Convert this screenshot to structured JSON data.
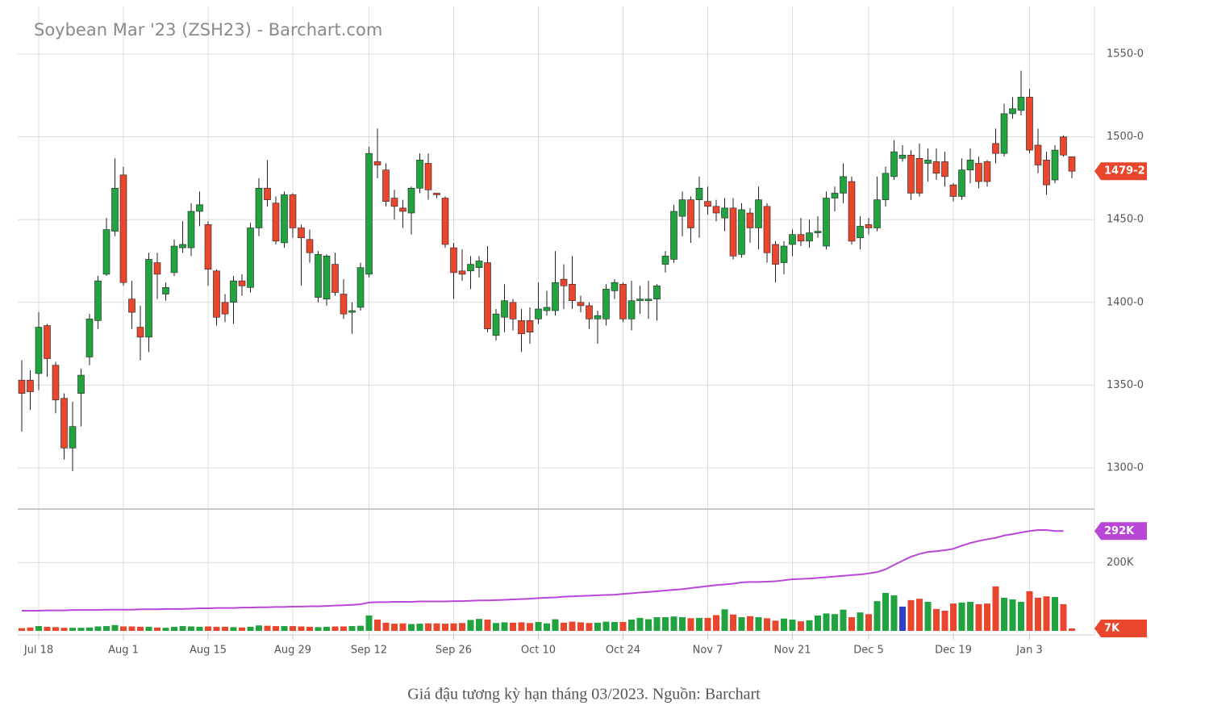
{
  "chart_data": {
    "type": "candlestick",
    "title": "Soybean Mar '23 (ZSH23) - Barchart.com",
    "caption": "Giá đậu tương kỳ hạn tháng 03/2023. Nguồn: Barchart",
    "categories": [
      null,
      null,
      "Jul 18",
      null,
      null,
      null,
      null,
      null,
      null,
      null,
      null,
      null,
      "Aug 1",
      null,
      null,
      null,
      null,
      null,
      null,
      null,
      null,
      null,
      "Aug 15",
      null,
      null,
      null,
      null,
      null,
      null,
      null,
      null,
      null,
      "Aug 29",
      null,
      null,
      null,
      null,
      null,
      null,
      null,
      null,
      "Sep 12",
      null,
      null,
      null,
      null,
      null,
      null,
      null,
      null,
      null,
      "Sep 26",
      null,
      null,
      null,
      null,
      null,
      null,
      null,
      null,
      null,
      "Oct 10",
      null,
      null,
      null,
      null,
      null,
      null,
      null,
      null,
      null,
      "Oct 24",
      null,
      null,
      null,
      null,
      null,
      null,
      null,
      null,
      null,
      "Nov 7",
      null,
      null,
      null,
      null,
      null,
      null,
      null,
      null,
      null,
      "Nov 21",
      null,
      null,
      null,
      null,
      null,
      null,
      null,
      null,
      "Dec 5",
      null,
      null,
      null,
      null,
      null,
      null,
      null,
      null,
      null,
      "Dec 19",
      null,
      null,
      null,
      null,
      null,
      null,
      null,
      null,
      "Jan 3",
      null,
      null,
      null,
      null,
      null
    ],
    "candles": {
      "up_color": "#21a33f",
      "down_color": "#e8472d",
      "open": [
        1353,
        1353,
        1357,
        1386,
        1362,
        1342,
        1312,
        1345,
        1367,
        1389,
        1417,
        1443,
        1477,
        1402,
        1385,
        1379,
        1424,
        1405,
        1418,
        1433,
        1433,
        1455,
        1447,
        1419,
        1400,
        1400,
        1413,
        1409,
        1445,
        1469,
        1460,
        1436,
        1465,
        1445,
        1438,
        1403,
        1402,
        1423,
        1405,
        1394,
        1397,
        1417,
        1485,
        1480,
        1463,
        1457,
        1454,
        1469,
        1484,
        1466,
        1463,
        1433,
        1419,
        1419,
        1421,
        1424,
        1380,
        1391,
        1400,
        1389,
        1389,
        1390,
        1395,
        1395,
        1414,
        1411,
        1400,
        1398,
        1390,
        1390,
        1407,
        1411,
        1390,
        1401,
        1401,
        1402,
        1423,
        1426,
        1452,
        1462,
        1462,
        1461,
        1458,
        1451,
        1457,
        1429,
        1454,
        1445,
        1458,
        1435,
        1424,
        1435,
        1441,
        1437,
        1442,
        1434,
        1463,
        1466,
        1473,
        1439,
        1447,
        1445,
        1462,
        1476,
        1487,
        1489,
        1487,
        1484,
        1485,
        1485,
        1471,
        1464,
        1480,
        1484,
        1485,
        1496,
        1490,
        1514,
        1516,
        1524,
        1495,
        1486,
        1474,
        1500,
        1488
      ],
      "high": [
        1365,
        1359,
        1394,
        1387,
        1364,
        1345,
        1340,
        1360,
        1393,
        1416,
        1451,
        1487,
        1482,
        1413,
        1398,
        1430,
        1430,
        1412,
        1438,
        1449,
        1460,
        1467,
        1449,
        1420,
        1405,
        1416,
        1417,
        1448,
        1475,
        1486,
        1464,
        1467,
        1466,
        1447,
        1444,
        1431,
        1429,
        1430,
        1414,
        1400,
        1424,
        1494,
        1505,
        1484,
        1468,
        1462,
        1470,
        1490,
        1490,
        1466,
        1464,
        1436,
        1432,
        1428,
        1428,
        1434,
        1396,
        1411,
        1402,
        1396,
        1397,
        1412,
        1407,
        1431,
        1423,
        1428,
        1404,
        1400,
        1395,
        1411,
        1414,
        1412,
        1413,
        1410,
        1413,
        1411,
        1431,
        1459,
        1467,
        1464,
        1476,
        1470,
        1462,
        1463,
        1463,
        1460,
        1457,
        1470,
        1460,
        1437,
        1437,
        1444,
        1451,
        1450,
        1452,
        1467,
        1470,
        1484,
        1476,
        1452,
        1451,
        1476,
        1482,
        1498,
        1495,
        1492,
        1496,
        1493,
        1493,
        1491,
        1472,
        1487,
        1493,
        1488,
        1486,
        1505,
        1520,
        1524,
        1540,
        1529,
        1505,
        1491,
        1495,
        1501,
        1488
      ],
      "low": [
        1322,
        1335,
        1347,
        1355,
        1333,
        1305,
        1298,
        1325,
        1362,
        1384,
        1416,
        1440,
        1410,
        1384,
        1365,
        1370,
        1402,
        1401,
        1416,
        1430,
        1428,
        1446,
        1410,
        1386,
        1388,
        1387,
        1404,
        1406,
        1440,
        1458,
        1435,
        1433,
        1439,
        1410,
        1424,
        1400,
        1398,
        1404,
        1390,
        1381,
        1395,
        1415,
        1475,
        1458,
        1450,
        1445,
        1441,
        1466,
        1462,
        1463,
        1433,
        1402,
        1413,
        1408,
        1415,
        1382,
        1377,
        1382,
        1383,
        1370,
        1375,
        1387,
        1392,
        1392,
        1396,
        1396,
        1394,
        1384,
        1375,
        1386,
        1402,
        1388,
        1383,
        1393,
        1390,
        1389,
        1418,
        1424,
        1440,
        1436,
        1439,
        1453,
        1449,
        1443,
        1426,
        1427,
        1436,
        1432,
        1424,
        1412,
        1417,
        1428,
        1434,
        1433,
        1439,
        1432,
        1455,
        1460,
        1435,
        1432,
        1441,
        1443,
        1458,
        1474,
        1485,
        1462,
        1464,
        1473,
        1474,
        1470,
        1461,
        1462,
        1472,
        1469,
        1470,
        1484,
        1488,
        1511,
        1513,
        1490,
        1478,
        1465,
        1472,
        1488,
        1475
      ],
      "close": [
        1345,
        1346,
        1385,
        1366,
        1341,
        1312,
        1325,
        1356,
        1390,
        1413,
        1444,
        1469,
        1412,
        1394,
        1379,
        1426,
        1417,
        1409,
        1434,
        1435,
        1455,
        1459,
        1420,
        1391,
        1393,
        1413,
        1410,
        1445,
        1469,
        1462,
        1437,
        1465,
        1445,
        1439,
        1430,
        1429,
        1428,
        1406,
        1393,
        1395,
        1421,
        1490,
        1483,
        1461,
        1458,
        1455,
        1469,
        1486,
        1468,
        1465,
        1435,
        1418,
        1417,
        1423,
        1425,
        1384,
        1393,
        1401,
        1390,
        1381,
        1382,
        1396,
        1397,
        1412,
        1410,
        1401,
        1398,
        1390,
        1392,
        1408,
        1412,
        1390,
        1401,
        1402,
        1402,
        1410,
        1428,
        1455,
        1462,
        1445,
        1469,
        1458,
        1454,
        1457,
        1428,
        1456,
        1445,
        1462,
        1430,
        1423,
        1434,
        1441,
        1437,
        1442,
        1443,
        1463,
        1466,
        1476,
        1437,
        1446,
        1445,
        1462,
        1478,
        1491,
        1489,
        1466,
        1466,
        1486,
        1478,
        1476,
        1464,
        1480,
        1486,
        1473,
        1473,
        1490,
        1514,
        1517,
        1524,
        1492,
        1483,
        1471,
        1492,
        1489,
        1479.25
      ]
    },
    "ylim": [
      1275.6,
      1578.8
    ],
    "yticks": [
      {
        "value": 1300,
        "label": "1300-0"
      },
      {
        "value": 1350,
        "label": "1350-0"
      },
      {
        "value": 1400,
        "label": "1400-0"
      },
      {
        "value": 1450,
        "label": "1450-0"
      },
      {
        "value": 1500,
        "label": "1500-0"
      },
      {
        "value": 1550,
        "label": "1550-0"
      }
    ],
    "last_price": {
      "value": 1479.25,
      "label": "1479-2",
      "color": "#e8472d"
    },
    "volume": {
      "ylim": [
        0,
        354
      ],
      "yticks": [
        {
          "value": 200,
          "label": "200K"
        }
      ],
      "values": [
        8,
        10,
        14,
        12,
        11,
        9,
        9,
        9,
        10,
        13,
        14,
        17,
        13,
        13,
        12,
        12,
        10,
        9,
        12,
        14,
        13,
        12,
        13,
        12,
        12,
        11,
        10,
        12,
        16,
        15,
        14,
        14,
        14,
        13,
        12,
        11,
        12,
        13,
        13,
        14,
        15,
        45,
        33,
        24,
        21,
        22,
        20,
        21,
        22,
        22,
        21,
        22,
        23,
        32,
        35,
        33,
        23,
        25,
        24,
        25,
        23,
        26,
        22,
        34,
        24,
        27,
        25,
        23,
        24,
        27,
        26,
        26,
        33,
        38,
        34,
        40,
        40,
        42,
        40,
        37,
        38,
        38,
        46,
        63,
        48,
        40,
        43,
        40,
        37,
        30,
        36,
        33,
        28,
        31,
        45,
        51,
        49,
        62,
        40,
        54,
        49,
        87,
        111,
        104,
        71,
        90,
        94,
        85,
        64,
        59,
        80,
        83,
        85,
        78,
        80,
        130,
        97,
        92,
        85,
        116,
        97,
        101,
        99,
        78,
        7
      ],
      "colors": [
        "#e8472d",
        "#e8472d",
        "#21a33f",
        "#e8472d",
        "#e8472d",
        "#e8472d",
        "#21a33f",
        "#21a33f",
        "#21a33f",
        "#21a33f",
        "#21a33f",
        "#21a33f",
        "#e8472d",
        "#e8472d",
        "#e8472d",
        "#21a33f",
        "#e8472d",
        "#21a33f",
        "#21a33f",
        "#21a33f",
        "#21a33f",
        "#21a33f",
        "#e8472d",
        "#e8472d",
        "#e8472d",
        "#21a33f",
        "#e8472d",
        "#21a33f",
        "#21a33f",
        "#e8472d",
        "#e8472d",
        "#21a33f",
        "#e8472d",
        "#e8472d",
        "#e8472d",
        "#21a33f",
        "#21a33f",
        "#e8472d",
        "#e8472d",
        "#21a33f",
        "#21a33f",
        "#21a33f",
        "#e8472d",
        "#e8472d",
        "#e8472d",
        "#e8472d",
        "#21a33f",
        "#21a33f",
        "#e8472d",
        "#e8472d",
        "#e8472d",
        "#e8472d",
        "#e8472d",
        "#21a33f",
        "#21a33f",
        "#e8472d",
        "#21a33f",
        "#21a33f",
        "#e8472d",
        "#e8472d",
        "#e8472d",
        "#21a33f",
        "#21a33f",
        "#21a33f",
        "#e8472d",
        "#e8472d",
        "#e8472d",
        "#e8472d",
        "#21a33f",
        "#21a33f",
        "#21a33f",
        "#e8472d",
        "#21a33f",
        "#21a33f",
        "#21a33f",
        "#21a33f",
        "#21a33f",
        "#21a33f",
        "#21a33f",
        "#e8472d",
        "#21a33f",
        "#e8472d",
        "#e8472d",
        "#21a33f",
        "#e8472d",
        "#21a33f",
        "#e8472d",
        "#21a33f",
        "#e8472d",
        "#e8472d",
        "#21a33f",
        "#21a33f",
        "#e8472d",
        "#21a33f",
        "#21a33f",
        "#21a33f",
        "#21a33f",
        "#21a33f",
        "#e8472d",
        "#21a33f",
        "#e8472d",
        "#21a33f",
        "#21a33f",
        "#21a33f",
        "#2e3fcc",
        "#e8472d",
        "#e8472d",
        "#21a33f",
        "#e8472d",
        "#e8472d",
        "#e8472d",
        "#21a33f",
        "#21a33f",
        "#e8472d",
        "#e8472d",
        "#e8472d",
        "#21a33f",
        "#21a33f",
        "#21a33f",
        "#e8472d",
        "#e8472d",
        "#e8472d",
        "#21a33f",
        "#e8472d",
        "#e8472d"
      ],
      "last": {
        "value": 7,
        "label": "7K",
        "color": "#e8472d"
      }
    },
    "open_interest": {
      "color": "#b847d6",
      "values": [
        59,
        59,
        59,
        60,
        60,
        60,
        61,
        61,
        61,
        61,
        62,
        62,
        62,
        62,
        63,
        63,
        63,
        64,
        64,
        64,
        65,
        66,
        66,
        67,
        67,
        67,
        68,
        68,
        69,
        69,
        70,
        70,
        71,
        71,
        72,
        72,
        73,
        74,
        75,
        76,
        78,
        83,
        84,
        84,
        85,
        85,
        85,
        86,
        86,
        86,
        86,
        87,
        87,
        88,
        89,
        89,
        90,
        91,
        92,
        93,
        94,
        96,
        97,
        98,
        100,
        101,
        102,
        103,
        104,
        105,
        106,
        108,
        110,
        112,
        114,
        116,
        118,
        120,
        122,
        125,
        128,
        131,
        134,
        136,
        138,
        142,
        143,
        143,
        144,
        145,
        148,
        151,
        152,
        153,
        155,
        157,
        159,
        161,
        163,
        165,
        168,
        172,
        180,
        193,
        205,
        217,
        225,
        231,
        233,
        236,
        240,
        249,
        257,
        263,
        268,
        272,
        279,
        283,
        288,
        292,
        295,
        295,
        292,
        292,
        null
      ],
      "last": {
        "value": 292,
        "label": "292K"
      }
    },
    "grid": true
  }
}
